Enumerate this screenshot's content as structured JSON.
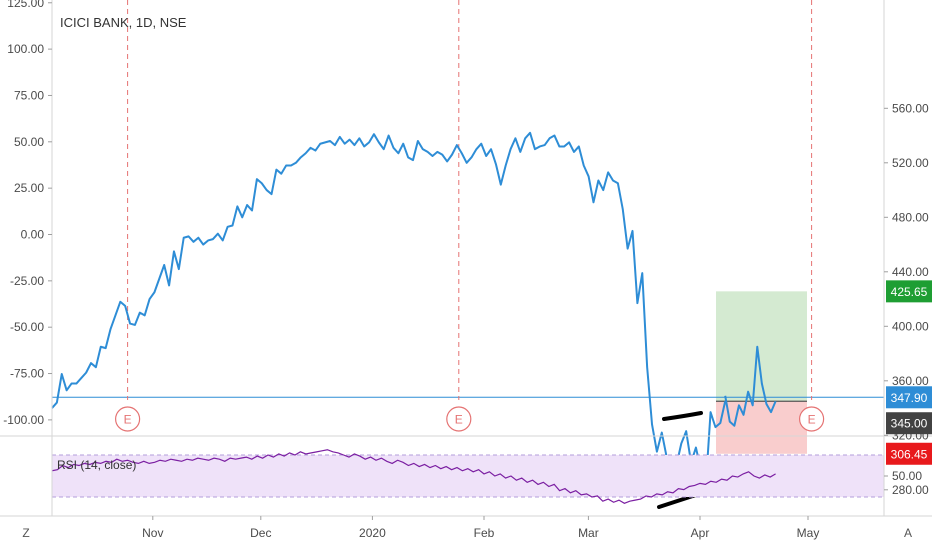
{
  "title": "ICICI BANK, 1D, NSE",
  "rsi_label": "RSI (14, close)",
  "corner_left": "Z",
  "corner_right": "A",
  "earnings_marker": "E",
  "colors": {
    "price_line": "#2e8dd6",
    "rsi_line": "#7b1fa2",
    "rsi_band": "#efe2f9",
    "event_line": "#e57373",
    "target_zone": "#cfe8cc",
    "stop_zone": "#f8c8c8",
    "target_badge": "#1e9e33",
    "current_badge": "#2e8dd6",
    "entry_badge": "#424242",
    "stop_badge": "#e8191c",
    "divergence": "#000000"
  },
  "chart_data": [
    {
      "type": "line",
      "title": "ICICI BANK, 1D, NSE",
      "x_ticks": [
        "Nov",
        "Dec",
        "2020",
        "Feb",
        "Mar",
        "Apr",
        "May"
      ],
      "left_axis": {
        "ticks": [
          "125.00",
          "100.00",
          "75.00",
          "50.00",
          "25.00",
          "0.00",
          "-25.00",
          "-50.00",
          "-75.00",
          "-100.00"
        ],
        "range": [
          -107,
          125
        ]
      },
      "right_axis": {
        "ticks": [
          "560.00",
          "520.00",
          "480.00",
          "440.00",
          "400.00",
          "360.00",
          "320.00",
          "280.00"
        ],
        "range": [
          262,
          577
        ]
      },
      "grid": false,
      "series": [
        {
          "values": [
            340,
            344,
            365,
            353,
            358,
            358,
            362,
            366,
            373,
            370,
            385,
            384,
            398,
            408,
            418,
            415,
            402,
            401,
            410,
            408,
            420,
            425,
            435,
            445,
            430,
            455,
            442,
            465,
            466,
            462,
            465,
            460,
            463,
            464,
            468,
            463,
            473,
            474,
            488,
            480,
            489,
            485,
            508,
            505,
            500,
            497,
            515,
            512,
            518,
            518,
            520,
            524,
            527,
            531,
            529,
            534,
            535,
            536,
            533,
            539,
            534,
            537,
            533,
            538,
            532,
            535,
            541,
            535,
            530,
            540,
            531,
            527,
            534,
            524,
            522,
            536,
            530,
            528,
            525,
            528,
            526,
            521,
            526,
            533,
            527,
            520,
            524,
            530,
            534,
            525,
            530,
            519,
            504,
            518,
            530,
            538,
            528,
            538,
            542,
            530,
            532,
            533,
            538,
            540,
            532,
            532,
            535,
            528,
            532,
            518,
            510,
            491,
            507,
            500,
            513,
            507,
            505,
            486,
            457,
            470,
            417,
            439,
            370,
            328,
            308,
            322,
            304,
            275,
            298,
            314,
            323,
            300,
            311,
            295,
            282,
            337,
            326,
            329,
            345
          ],
          "x_range": [
            "2019-10-04",
            "2020-04-22"
          ]
        },
        {
          "values": [
            349,
            330,
            327,
            342,
            335,
            352,
            342,
            385,
            358,
            343,
            337,
            345
          ]
        }
      ],
      "levels": [
        {
          "label": "425.65",
          "value": 425.65
        },
        {
          "label": "347.90",
          "value": 347.9
        },
        {
          "label": "345.00",
          "value": 345.0
        },
        {
          "label": "306.45",
          "value": 306.45
        }
      ],
      "earnings_dates": [
        "2019-10-25",
        "2020-01-25",
        "2020-05-02"
      ]
    },
    {
      "type": "line",
      "title": "RSI (14, close)",
      "right_axis": {
        "ticks": [
          "50.00"
        ],
        "range": [
          15,
          85
        ]
      },
      "band": [
        30,
        70
      ],
      "values": [
        55,
        56,
        60,
        58,
        61,
        60,
        62,
        61,
        63,
        62,
        64,
        63,
        66,
        64,
        65,
        63,
        62,
        64,
        62,
        63,
        65,
        64,
        66,
        65,
        64,
        66,
        65,
        67,
        66,
        65,
        67,
        66,
        64,
        67,
        66,
        67,
        68,
        66,
        69,
        67,
        70,
        68,
        71,
        69,
        72,
        70,
        73,
        71,
        72,
        73,
        74,
        75,
        73,
        72,
        70,
        68,
        71,
        69,
        66,
        68,
        65,
        67,
        64,
        62,
        65,
        63,
        60,
        62,
        59,
        61,
        58,
        60,
        57,
        59,
        56,
        58,
        55,
        57,
        54,
        56,
        52,
        54,
        50,
        52,
        48,
        50,
        46,
        48,
        44,
        46,
        42,
        44,
        40,
        42,
        36,
        38,
        34,
        36,
        32,
        33,
        30,
        31,
        26,
        28,
        25,
        27,
        24,
        26,
        27,
        28,
        31,
        30,
        33,
        32,
        35,
        34,
        38,
        37,
        40,
        41,
        43,
        42,
        45,
        44,
        47,
        46,
        50,
        49,
        52,
        54,
        50,
        48,
        51,
        49,
        52
      ]
    }
  ]
}
